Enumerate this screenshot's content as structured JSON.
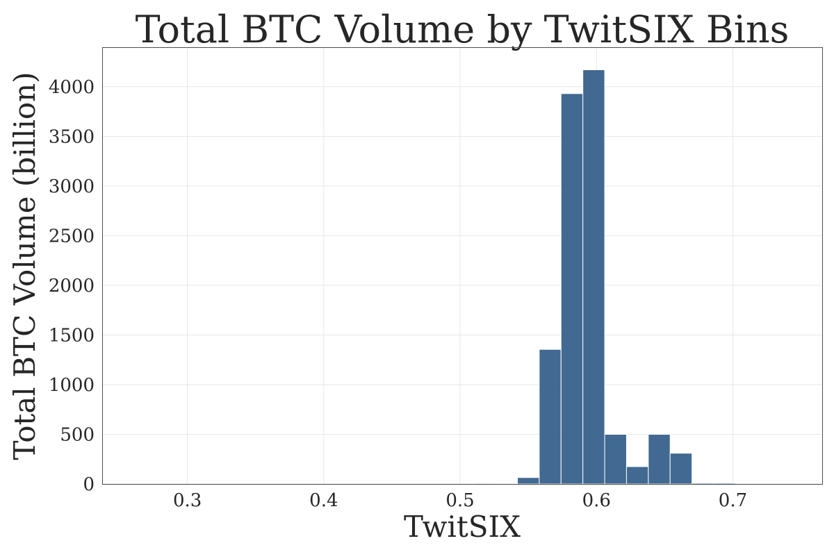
{
  "chart_data": {
    "type": "bar",
    "title": "Total BTC Volume by TwitSIX Bins",
    "xlabel": "TwitSIX",
    "ylabel": "Total BTC Volume (billion)",
    "xlim": [
      0.238,
      0.7655
    ],
    "ylim": [
      0,
      4390
    ],
    "x_ticks": [
      0.3,
      0.4,
      0.5,
      0.6,
      0.7
    ],
    "x_tick_labels": [
      "0.3",
      "0.4",
      "0.5",
      "0.6",
      "0.7"
    ],
    "y_ticks": [
      0,
      500,
      1000,
      1500,
      2000,
      2500,
      3000,
      3500,
      4000
    ],
    "y_tick_labels": [
      "0",
      "500",
      "1000",
      "1500",
      "2000",
      "2500",
      "3000",
      "3500",
      "4000"
    ],
    "grid": true,
    "bar_color": "#2c5985",
    "bin_width": 0.016,
    "bins": [
      {
        "x0": 0.254,
        "x1": 0.27,
        "value": 0
      },
      {
        "x0": 0.27,
        "x1": 0.286,
        "value": 0
      },
      {
        "x0": 0.286,
        "x1": 0.302,
        "value": 0
      },
      {
        "x0": 0.302,
        "x1": 0.318,
        "value": 0
      },
      {
        "x0": 0.318,
        "x1": 0.334,
        "value": 0
      },
      {
        "x0": 0.334,
        "x1": 0.35,
        "value": 0
      },
      {
        "x0": 0.35,
        "x1": 0.366,
        "value": 0
      },
      {
        "x0": 0.366,
        "x1": 0.382,
        "value": 0
      },
      {
        "x0": 0.382,
        "x1": 0.398,
        "value": 0
      },
      {
        "x0": 0.398,
        "x1": 0.414,
        "value": 0
      },
      {
        "x0": 0.414,
        "x1": 0.43,
        "value": 0
      },
      {
        "x0": 0.43,
        "x1": 0.446,
        "value": 0
      },
      {
        "x0": 0.446,
        "x1": 0.462,
        "value": 0
      },
      {
        "x0": 0.462,
        "x1": 0.478,
        "value": 0
      },
      {
        "x0": 0.478,
        "x1": 0.494,
        "value": 0
      },
      {
        "x0": 0.494,
        "x1": 0.51,
        "value": 0
      },
      {
        "x0": 0.51,
        "x1": 0.526,
        "value": 8
      },
      {
        "x0": 0.526,
        "x1": 0.542,
        "value": 0
      },
      {
        "x0": 0.542,
        "x1": 0.558,
        "value": 65
      },
      {
        "x0": 0.558,
        "x1": 0.574,
        "value": 1355
      },
      {
        "x0": 0.574,
        "x1": 0.59,
        "value": 3930
      },
      {
        "x0": 0.59,
        "x1": 0.606,
        "value": 4170
      },
      {
        "x0": 0.606,
        "x1": 0.622,
        "value": 500
      },
      {
        "x0": 0.622,
        "x1": 0.638,
        "value": 175
      },
      {
        "x0": 0.638,
        "x1": 0.654,
        "value": 500
      },
      {
        "x0": 0.654,
        "x1": 0.67,
        "value": 310
      },
      {
        "x0": 0.67,
        "x1": 0.686,
        "value": 10
      },
      {
        "x0": 0.686,
        "x1": 0.702,
        "value": 10
      },
      {
        "x0": 0.702,
        "x1": 0.718,
        "value": 0
      },
      {
        "x0": 0.718,
        "x1": 0.734,
        "value": 0
      },
      {
        "x0": 0.734,
        "x1": 0.75,
        "value": 0
      }
    ]
  }
}
